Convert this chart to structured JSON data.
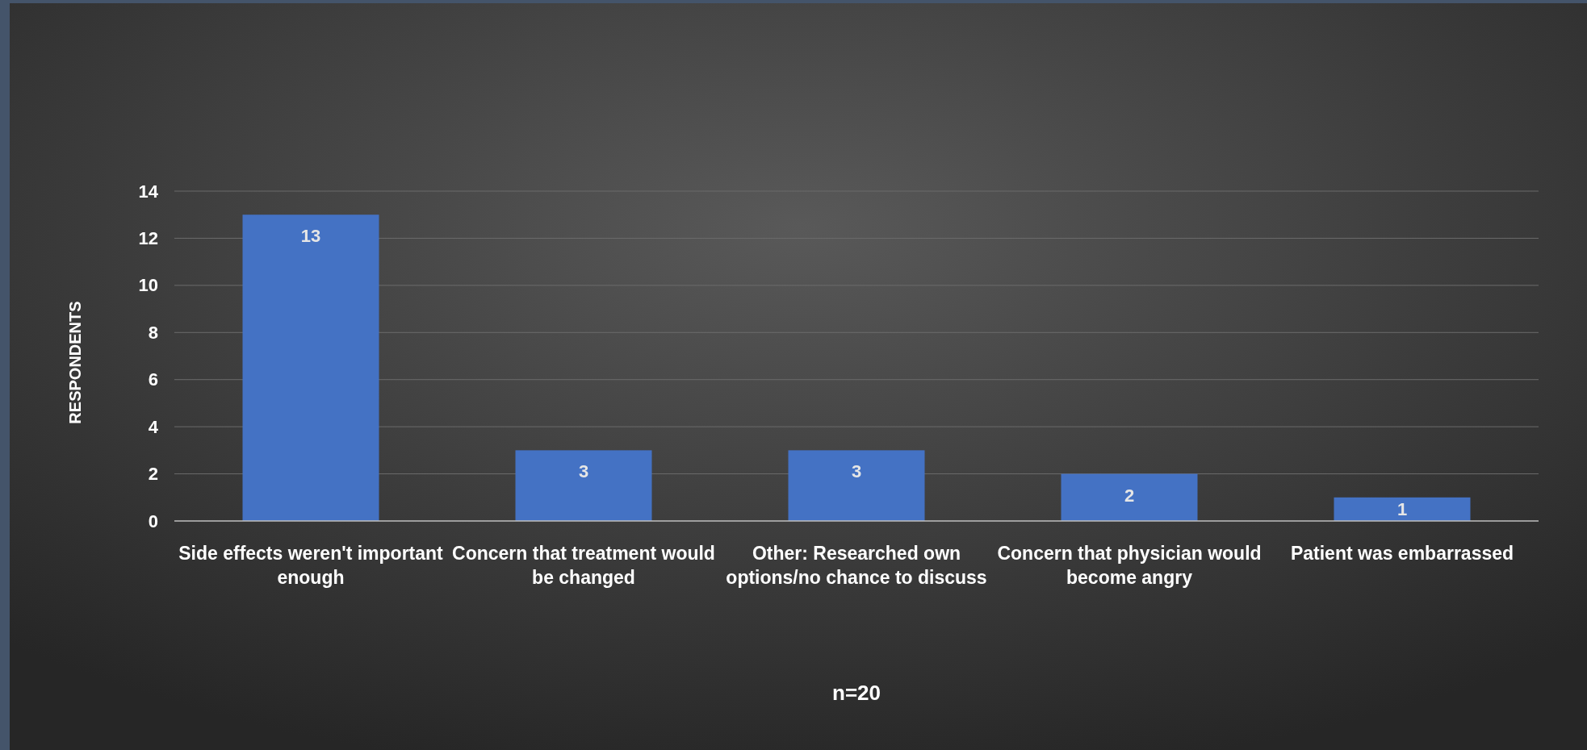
{
  "chart_data": {
    "type": "bar",
    "xlabel": "n=20",
    "ylabel": "RESPONDENTS",
    "categories": [
      "Side effects weren't important enough",
      "Concern that treatment would be changed",
      "Other: Researched own options/no chance to discuss",
      "Concern that physician would become angry",
      "Patient was embarrassed"
    ],
    "values": [
      13,
      3,
      3,
      2,
      1
    ],
    "color": "#4472c4",
    "ylim": [
      0,
      14
    ],
    "yticks": [
      0,
      2,
      4,
      6,
      8,
      10,
      12,
      14
    ],
    "grid": "y",
    "data_labels": true
  }
}
